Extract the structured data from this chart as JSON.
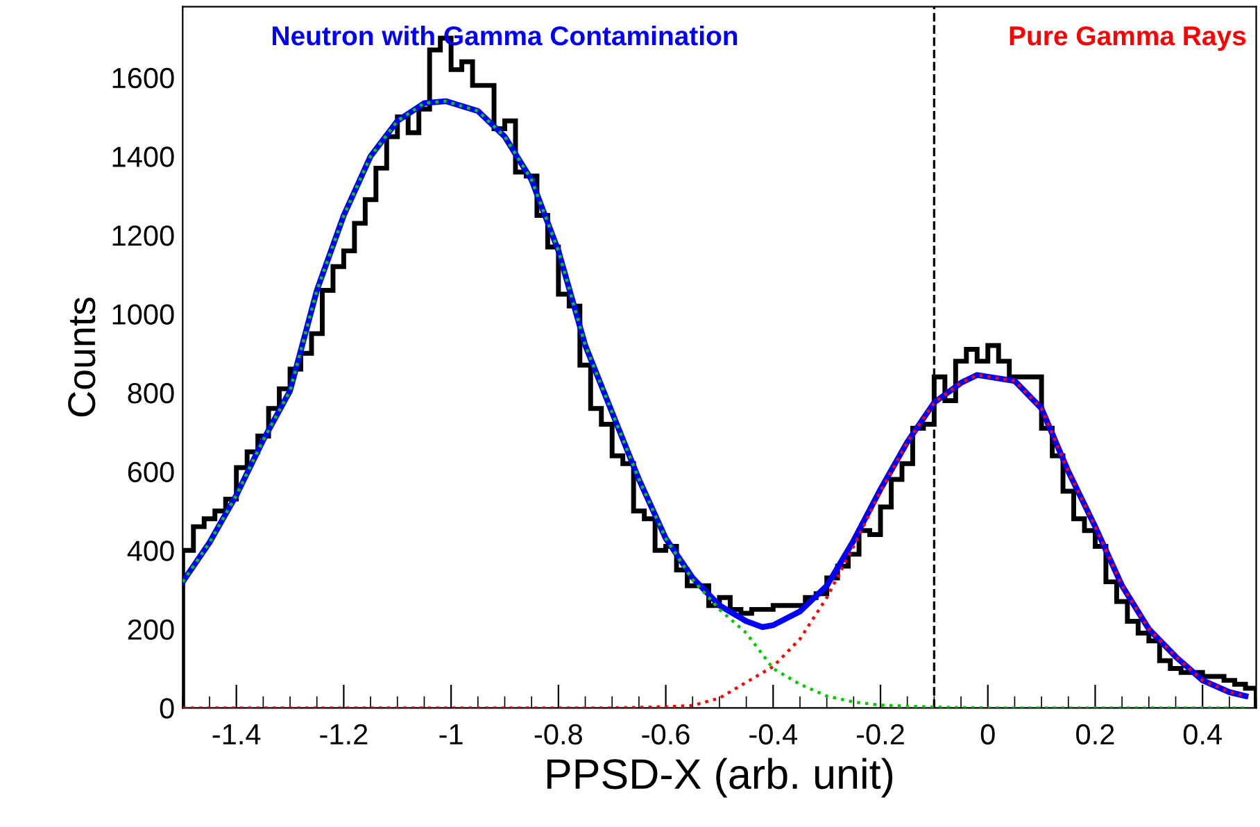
{
  "chart_data": {
    "type": "histogram",
    "xlabel": "PPSD-X (arb. unit)",
    "ylabel": "Counts",
    "annotations": [
      "Neutron with Gamma Contamination",
      "Pure Gamma Rays"
    ],
    "color": "#000000",
    "bins": [
      -1.5,
      -1.48,
      -1.46,
      -1.44,
      -1.42,
      -1.4,
      -1.38,
      -1.36,
      -1.34,
      -1.32,
      -1.3,
      -1.28,
      -1.26,
      -1.24,
      -1.22,
      -1.2,
      -1.18,
      -1.16,
      -1.14,
      -1.12,
      -1.1,
      -1.08,
      -1.06,
      -1.04,
      -1.02,
      -1.0,
      -0.98,
      -0.96,
      -0.94,
      -0.92,
      -0.9,
      -0.88,
      -0.86,
      -0.84,
      -0.82,
      -0.8,
      -0.78,
      -0.76,
      -0.74,
      -0.72,
      -0.7,
      -0.68,
      -0.66,
      -0.64,
      -0.62,
      -0.6,
      -0.58,
      -0.56,
      -0.54,
      -0.52,
      -0.5,
      -0.48,
      -0.46,
      -0.44,
      -0.42,
      -0.4,
      -0.38,
      -0.36,
      -0.34,
      -0.32,
      -0.3,
      -0.28,
      -0.26,
      -0.24,
      -0.22,
      -0.2,
      -0.18,
      -0.16,
      -0.14,
      -0.12,
      -0.1,
      -0.08,
      -0.06,
      -0.04,
      -0.02,
      0.0,
      0.02,
      0.04,
      0.06,
      0.08,
      0.1,
      0.12,
      0.14,
      0.16,
      0.18,
      0.2,
      0.22,
      0.24,
      0.26,
      0.28,
      0.3,
      0.32,
      0.34,
      0.36,
      0.38,
      0.4,
      0.42,
      0.44,
      0.46,
      0.48,
      0.5
    ],
    "values": [
      400,
      460,
      480,
      500,
      530,
      610,
      650,
      690,
      760,
      810,
      860,
      900,
      950,
      1060,
      1120,
      1160,
      1230,
      1290,
      1370,
      1450,
      1500,
      1460,
      1520,
      1670,
      1700,
      1620,
      1640,
      1580,
      1580,
      1470,
      1490,
      1360,
      1350,
      1250,
      1170,
      1050,
      1020,
      870,
      760,
      720,
      640,
      620,
      500,
      480,
      400,
      410,
      350,
      310,
      310,
      260,
      280,
      250,
      240,
      250,
      250,
      260,
      260,
      260,
      280,
      290,
      330,
      360,
      390,
      450,
      440,
      510,
      580,
      620,
      710,
      720,
      840,
      780,
      880,
      910,
      880,
      920,
      880,
      840,
      840,
      840,
      710,
      640,
      550,
      480,
      450,
      410,
      320,
      270,
      220,
      190,
      170,
      120,
      100,
      90,
      90,
      80,
      80,
      70,
      60,
      50
    ],
    "series": [
      {
        "type": "line",
        "color": "#00cc00",
        "line_style": "dotted",
        "x": [
          -1.5,
          -1.45,
          -1.4,
          -1.35,
          -1.3,
          -1.25,
          -1.2,
          -1.15,
          -1.1,
          -1.05,
          -1.01,
          -0.95,
          -0.9,
          -0.85,
          -0.8,
          -0.75,
          -0.7,
          -0.65,
          -0.6,
          -0.55,
          -0.5,
          -0.45,
          -0.4,
          -0.35,
          -0.3,
          -0.25,
          -0.2,
          -0.1,
          0.0,
          0.2,
          0.48
        ],
        "values": [
          320,
          420,
          540,
          680,
          805,
          1060,
          1250,
          1400,
          1490,
          1535,
          1540,
          1515,
          1450,
          1340,
          1160,
          920,
          750,
          580,
          430,
          325,
          250,
          190,
          100,
          60,
          30,
          15,
          7,
          2,
          0,
          0,
          0
        ]
      },
      {
        "type": "line",
        "color": "#ff0000",
        "line_style": "dotted",
        "x": [
          -1.5,
          -1.0,
          -0.7,
          -0.6,
          -0.55,
          -0.5,
          -0.45,
          -0.4,
          -0.35,
          -0.3,
          -0.25,
          -0.2,
          -0.15,
          -0.1,
          -0.05,
          -0.02,
          0.05,
          0.1,
          0.15,
          0.2,
          0.25,
          0.3,
          0.35,
          0.4,
          0.45,
          0.48
        ],
        "values": [
          0,
          0,
          0,
          3,
          6,
          25,
          65,
          105,
          175,
          280,
          410,
          550,
          675,
          775,
          825,
          845,
          830,
          760,
          600,
          460,
          310,
          200,
          130,
          70,
          40,
          30
        ]
      },
      {
        "type": "line",
        "color": "#0000ff",
        "line_style": "solid",
        "x": [
          -1.5,
          -1.45,
          -1.4,
          -1.35,
          -1.3,
          -1.25,
          -1.2,
          -1.15,
          -1.1,
          -1.05,
          -1.01,
          -0.95,
          -0.9,
          -0.85,
          -0.8,
          -0.75,
          -0.7,
          -0.65,
          -0.6,
          -0.55,
          -0.5,
          -0.45,
          -0.42,
          -0.4,
          -0.35,
          -0.3,
          -0.25,
          -0.2,
          -0.15,
          -0.1,
          -0.05,
          -0.02,
          0.05,
          0.1,
          0.15,
          0.2,
          0.25,
          0.3,
          0.35,
          0.4,
          0.45,
          0.48
        ],
        "values": [
          320,
          420,
          540,
          680,
          805,
          1060,
          1250,
          1400,
          1490,
          1535,
          1540,
          1515,
          1450,
          1340,
          1160,
          920,
          750,
          580,
          430,
          330,
          260,
          220,
          205,
          210,
          245,
          310,
          425,
          555,
          675,
          775,
          825,
          845,
          830,
          760,
          600,
          460,
          310,
          200,
          130,
          70,
          40,
          30
        ]
      }
    ],
    "ref_lines": [
      {
        "axis": "x",
        "value": -0.1,
        "color": "#000000",
        "line_style": "dashed"
      }
    ],
    "xlim": [
      -1.5,
      0.5
    ],
    "ylim": [
      0,
      1780
    ],
    "xticks": [
      -1.4,
      -1.2,
      -1,
      -0.8,
      -0.6,
      -0.4,
      -0.2,
      0,
      0.2,
      0.4
    ],
    "yticks": [
      0,
      200,
      400,
      600,
      800,
      1000,
      1200,
      1400,
      1600
    ],
    "grid": false,
    "legend": false
  }
}
